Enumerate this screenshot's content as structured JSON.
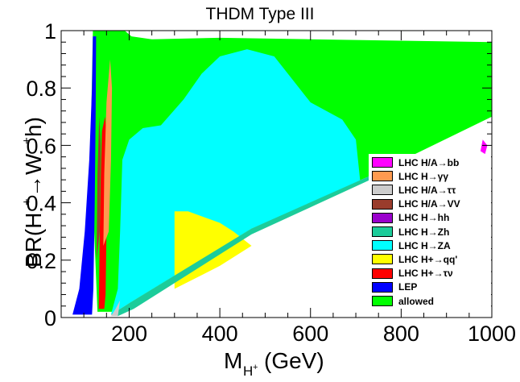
{
  "chart_data": {
    "type": "scatter",
    "title": "THDM Type III",
    "xlabel": "M_{H+} (GeV)",
    "ylabel": "BR(H+ → W+h)",
    "xlim": [
      50,
      1000
    ],
    "ylim": [
      0,
      1
    ],
    "xticks": [
      "200",
      "400",
      "600",
      "800",
      "1000"
    ],
    "yticks": [
      "0",
      "0.2",
      "0.4",
      "0.6",
      "0.8",
      "1"
    ],
    "legend_position": "right",
    "legend": [
      {
        "name": "LHC H/A→bb",
        "color": "#ff00ff"
      },
      {
        "name": "LHC H→γγ",
        "color": "#ff9a50"
      },
      {
        "name": "LHC H/A→ττ",
        "color": "#cccccc"
      },
      {
        "name": "LHC H/A→VV",
        "color": "#9a3c2c"
      },
      {
        "name": "LHC H→hh",
        "color": "#9a00cc"
      },
      {
        "name": "LHC H→Zh",
        "color": "#1ccc9a"
      },
      {
        "name": "LHC H→ZA",
        "color": "#00ffff"
      },
      {
        "name": "LHC H+→qq'",
        "color": "#ffff00"
      },
      {
        "name": "LHC H+→τν",
        "color": "#ff0000"
      },
      {
        "name": "LEP",
        "color": "#0000ff"
      },
      {
        "name": "allowed",
        "color": "#00ff00"
      }
    ],
    "regions": [
      {
        "name": "allowed",
        "polygon": [
          [
            165,
            0.02
          ],
          [
            200,
            0.05
          ],
          [
            470,
            0.31
          ],
          [
            740,
            0.5
          ],
          [
            1000,
            0.7
          ],
          [
            1000,
            0.96
          ],
          [
            800,
            0.965
          ],
          [
            600,
            0.97
          ],
          [
            400,
            0.975
          ],
          [
            250,
            0.97
          ],
          [
            205,
            0.98
          ],
          [
            190,
            1.0
          ],
          [
            120,
            1.0
          ],
          [
            115,
            0.6
          ],
          [
            130,
            0.02
          ]
        ]
      },
      {
        "name": "LHC H→ZA",
        "polygon": [
          [
            160,
            0.01
          ],
          [
            200,
            0.05
          ],
          [
            470,
            0.31
          ],
          [
            710,
            0.47
          ],
          [
            700,
            0.62
          ],
          [
            670,
            0.69
          ],
          [
            600,
            0.75
          ],
          [
            560,
            0.83
          ],
          [
            520,
            0.91
          ],
          [
            460,
            0.935
          ],
          [
            400,
            0.91
          ],
          [
            360,
            0.85
          ],
          [
            320,
            0.76
          ],
          [
            270,
            0.67
          ],
          [
            230,
            0.66
          ],
          [
            200,
            0.62
          ],
          [
            185,
            0.55
          ],
          [
            180,
            0.3
          ],
          [
            175,
            0.1
          ]
        ]
      },
      {
        "name": "LHC H+→qq'",
        "polygon": [
          [
            300,
            0.1
          ],
          [
            300,
            0.37
          ],
          [
            330,
            0.37
          ],
          [
            400,
            0.33
          ],
          [
            430,
            0.3
          ],
          [
            470,
            0.25
          ],
          [
            400,
            0.18
          ]
        ]
      },
      {
        "name": "LHC H→Zh",
        "polygon": [
          [
            160,
            0.01
          ],
          [
            200,
            0.05
          ],
          [
            470,
            0.31
          ],
          [
            740,
            0.5
          ],
          [
            745,
            0.49
          ],
          [
            470,
            0.29
          ],
          [
            210,
            0.03
          ],
          [
            175,
            0.005
          ]
        ]
      },
      {
        "name": "LHC H+→τν",
        "polygon": [
          [
            133,
            0.03
          ],
          [
            135,
            0.3
          ],
          [
            138,
            0.55
          ],
          [
            140,
            0.65
          ],
          [
            147,
            0.7
          ],
          [
            152,
            0.6
          ],
          [
            150,
            0.3
          ],
          [
            148,
            0.08
          ],
          [
            145,
            0.03
          ]
        ]
      },
      {
        "name": "LEP",
        "polygon": [
          [
            75,
            0.01
          ],
          [
            90,
            0.1
          ],
          [
            102,
            0.3
          ],
          [
            112,
            0.55
          ],
          [
            118,
            0.8
          ],
          [
            120,
            0.98
          ],
          [
            127,
            0.98
          ],
          [
            126,
            0.7
          ],
          [
            124,
            0.4
          ],
          [
            121,
            0.1
          ],
          [
            118,
            0.01
          ]
        ]
      },
      {
        "name": "LHC H→γγ",
        "polygon": [
          [
            143,
            0.25
          ],
          [
            145,
            0.5
          ],
          [
            150,
            0.75
          ],
          [
            158,
            0.9
          ],
          [
            162,
            0.8
          ],
          [
            160,
            0.55
          ],
          [
            155,
            0.3
          ]
        ]
      },
      {
        "name": "LHC H/A→VV",
        "polygon": [
          [
            128,
            0.2
          ],
          [
            130,
            0.5
          ],
          [
            134,
            0.7
          ],
          [
            137,
            0.6
          ],
          [
            135,
            0.3
          ]
        ]
      },
      {
        "name": "LHC H/A→ττ",
        "polygon": [
          [
            160,
            0.005
          ],
          [
            170,
            0.03
          ],
          [
            180,
            0.06
          ],
          [
            175,
            0.005
          ]
        ]
      },
      {
        "name": "LHC H/A→bb",
        "polygon": [
          [
            975,
            0.58
          ],
          [
            980,
            0.62
          ],
          [
            990,
            0.6
          ],
          [
            985,
            0.57
          ]
        ]
      }
    ]
  }
}
